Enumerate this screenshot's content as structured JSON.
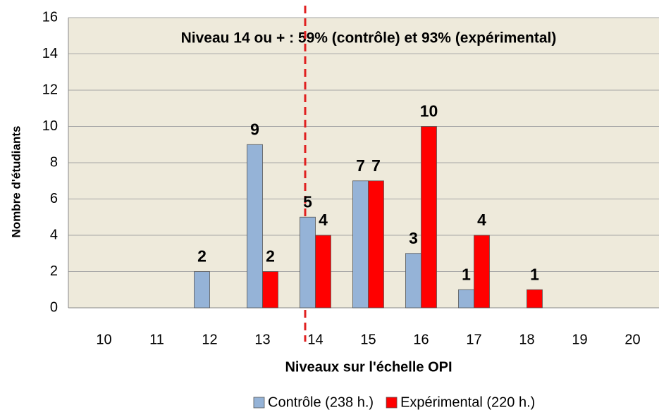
{
  "chart_data": {
    "type": "bar",
    "annotation": "Niveau 14 ou + : 59% (contrôle) et 93% (expérimental)",
    "x_label": "Niveaux sur l'échelle OPI",
    "y_label": "Nombre d'étudiants",
    "categories": [
      "10",
      "11",
      "12",
      "13",
      "14",
      "15",
      "16",
      "17",
      "18",
      "19",
      "20"
    ],
    "series": [
      {
        "name": "Contrôle (238 h.)",
        "color": "#95b3d7",
        "values": [
          null,
          null,
          2,
          9,
          5,
          7,
          3,
          1,
          null,
          null,
          null
        ]
      },
      {
        "name": "Expérimental (220 h.)",
        "color": "#ff0000",
        "values": [
          null,
          null,
          null,
          2,
          4,
          7,
          10,
          4,
          1,
          null,
          null
        ]
      }
    ],
    "ylim": [
      0,
      16
    ],
    "yticks": [
      0,
      2,
      4,
      6,
      8,
      10,
      12,
      14,
      16
    ],
    "grid": true,
    "legend": "bottom"
  }
}
